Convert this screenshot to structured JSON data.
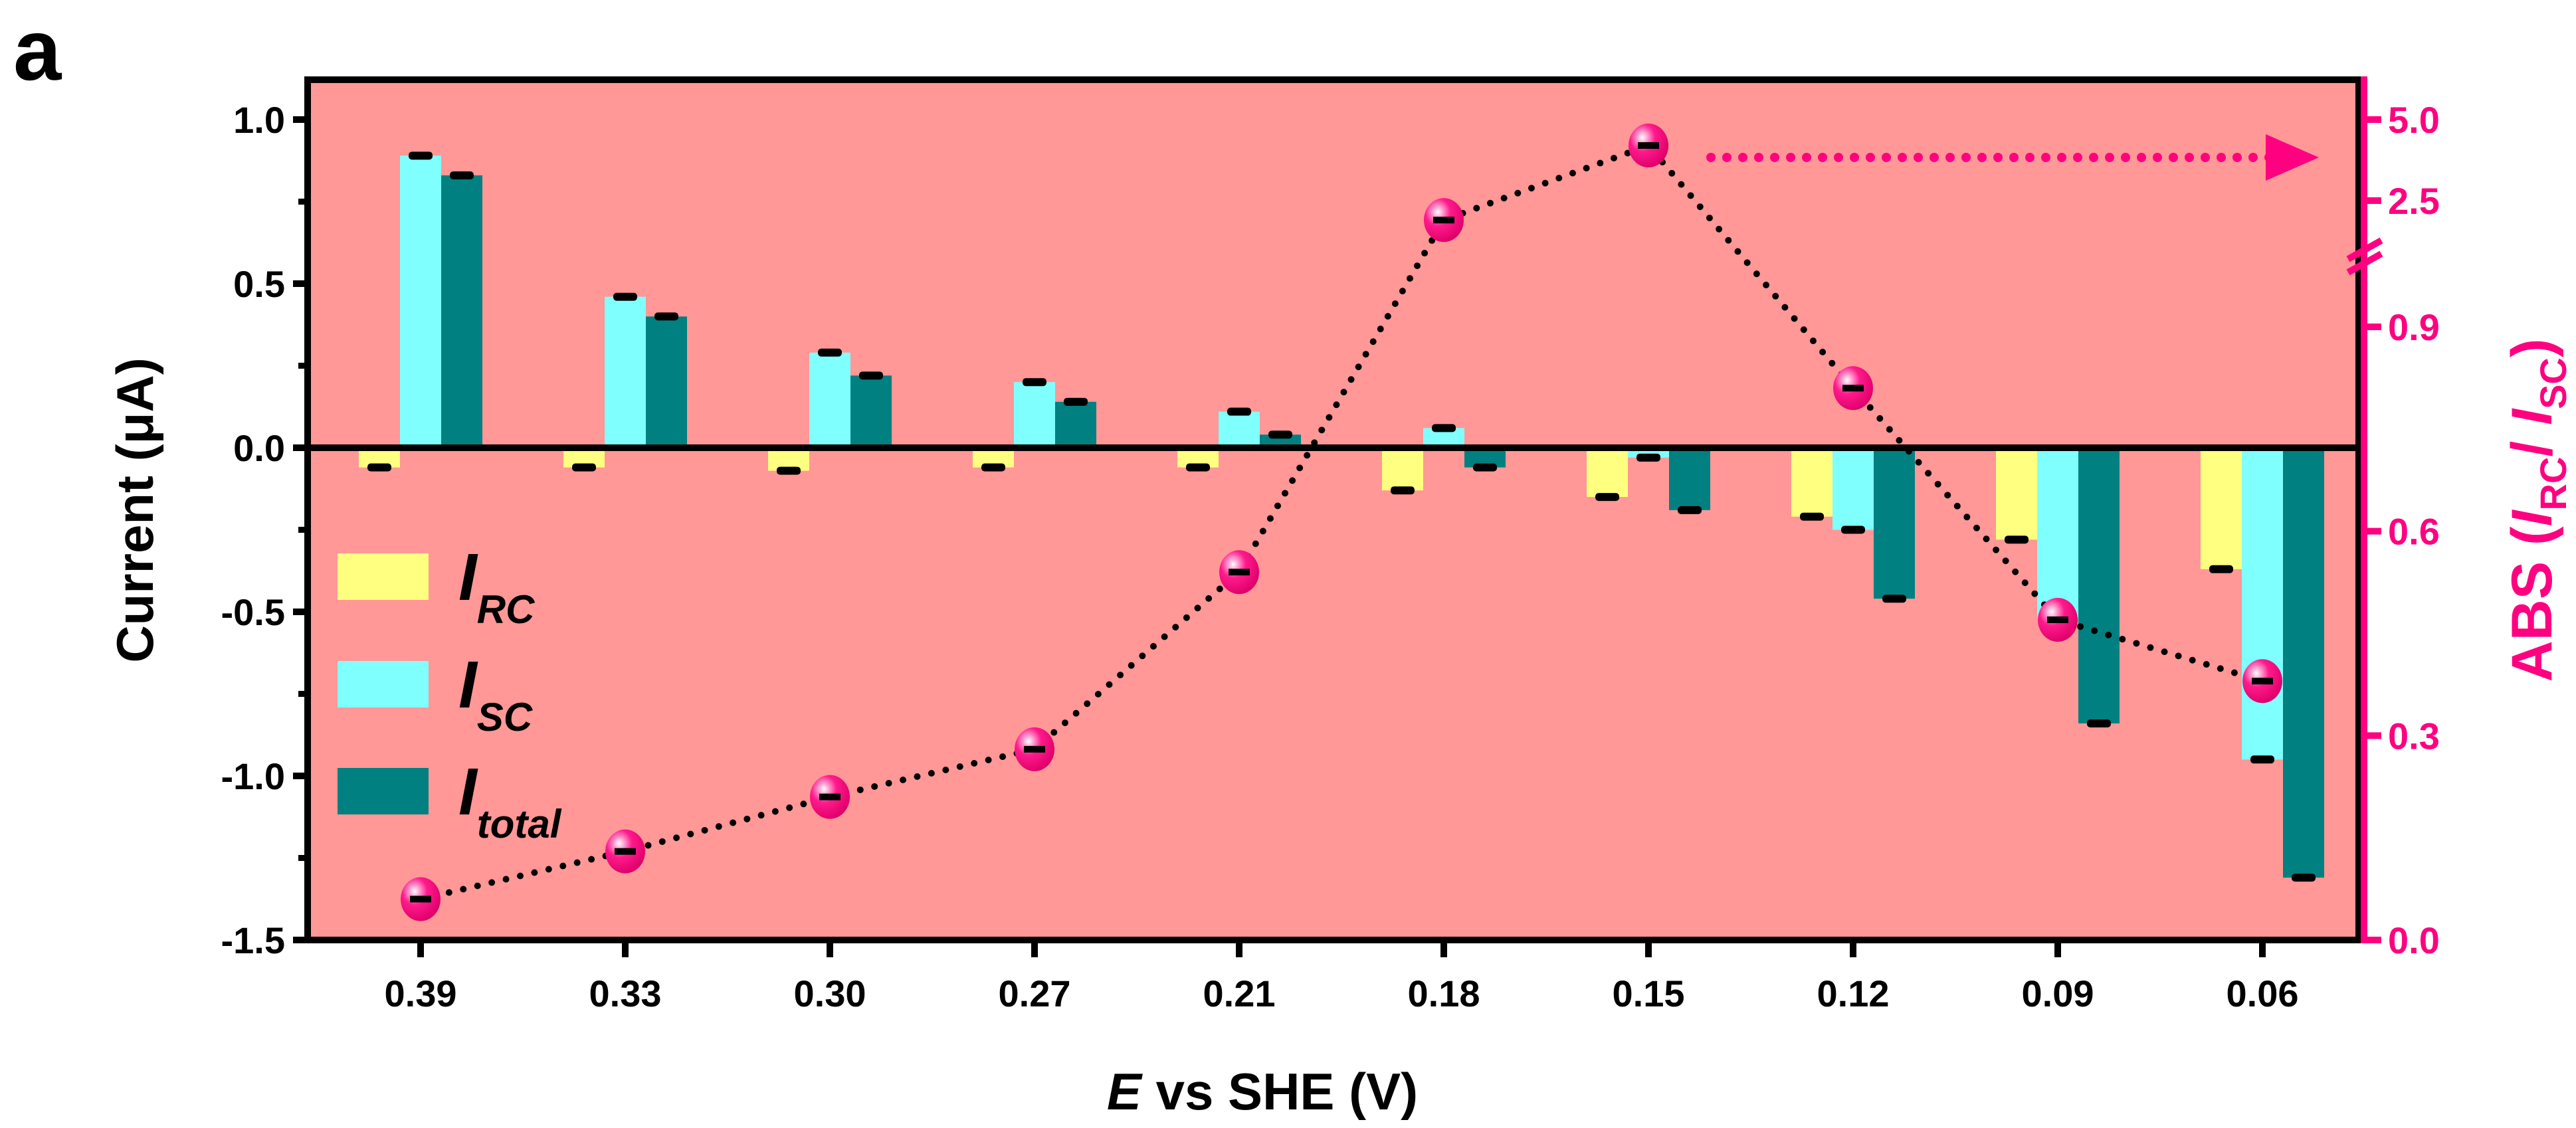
{
  "panel_label": "a",
  "chart_data": {
    "type": "bar+line",
    "categories": [
      "0.39",
      "0.33",
      "0.30",
      "0.27",
      "0.21",
      "0.18",
      "0.15",
      "0.12",
      "0.09",
      "0.06"
    ],
    "xlabel": {
      "italic": "E",
      "rest": " vs SHE (V)"
    },
    "ylabel": "Current (μA)",
    "ylim": [
      -1.5,
      1.0
    ],
    "yticks": [
      "1.0",
      "0.5",
      "0.0",
      "-0.5",
      "-1.0",
      "-1.5"
    ],
    "y2label": {
      "prefix": "ABS (",
      "i1": "I",
      "s1": "RC",
      "slash": "/ ",
      "i2": "I",
      "s2": "SC",
      "suffix": ")"
    },
    "y2ticks": [
      "5.0",
      "2.5",
      "0.9",
      "0.6",
      "0.3",
      "0.0"
    ],
    "y2_axis_break": "between 0.9 and 2.5",
    "series": [
      {
        "name": {
          "i": "I",
          "sub": "RC"
        },
        "color": "#FFFF80",
        "values": [
          -0.06,
          -0.06,
          -0.07,
          -0.06,
          -0.06,
          -0.13,
          -0.15,
          -0.21,
          -0.28,
          -0.37
        ]
      },
      {
        "name": {
          "i": "I",
          "sub": "SC"
        },
        "color": "#80FFFF",
        "values": [
          0.89,
          0.46,
          0.29,
          0.2,
          0.11,
          0.06,
          -0.03,
          -0.25,
          -0.52,
          -0.95
        ]
      },
      {
        "name": {
          "i": "I",
          "sub": "total"
        },
        "color": "#008080",
        "values": [
          0.83,
          0.4,
          0.22,
          0.14,
          0.04,
          -0.06,
          -0.19,
          -0.46,
          -0.84,
          -1.31
        ]
      }
    ],
    "line_series": {
      "axis": "right",
      "color": "#FF0080",
      "style": "dotted",
      "values": [
        0.06,
        0.13,
        0.21,
        0.28,
        0.54,
        1.9,
        4.2,
        0.81,
        0.47,
        0.38
      ]
    },
    "background": "#FF9896",
    "grid": false,
    "legend_placement": "left-middle",
    "annotation": "dotted arrow pointing to right axis"
  }
}
